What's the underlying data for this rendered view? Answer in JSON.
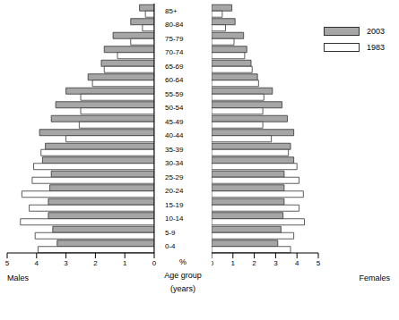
{
  "chart_data": [
    {
      "type": "bar",
      "orientation": "horizontal",
      "xlabel": "Males",
      "annotations": [
        "%",
        "Age group",
        "(years)"
      ],
      "categories": [
        "0-4",
        "5-9",
        "10-14",
        "15-19",
        "20-24",
        "25-29",
        "30-34",
        "35-39",
        "40-44",
        "45-49",
        "50-54",
        "55-59",
        "60-64",
        "65-69",
        "70-74",
        "75-79",
        "80-84",
        "85+"
      ],
      "xlim": [
        0,
        5
      ],
      "xticks": [
        0,
        1,
        2,
        3,
        4,
        5
      ],
      "tick_labels": true,
      "series": [
        {
          "name": "2003",
          "color": "#a6a6a6",
          "values": [
            3.3,
            3.45,
            3.6,
            3.6,
            3.55,
            3.5,
            3.8,
            3.7,
            3.9,
            3.5,
            3.35,
            3.0,
            2.25,
            1.8,
            1.7,
            1.4,
            0.8,
            0.5
          ]
        },
        {
          "name": "1983",
          "color": "#ffffff",
          "values": [
            3.95,
            4.05,
            4.55,
            4.25,
            4.5,
            4.15,
            4.1,
            3.85,
            3.0,
            2.55,
            2.5,
            2.5,
            2.1,
            1.7,
            1.25,
            0.8,
            0.4,
            0.3
          ]
        }
      ]
    },
    {
      "type": "bar",
      "orientation": "horizontal",
      "xlabel": "Females",
      "legend": "top-right",
      "categories": [
        "0-4",
        "5-9",
        "10-14",
        "15-19",
        "20-24",
        "25-29",
        "30-34",
        "35-39",
        "40-44",
        "45-49",
        "50-54",
        "55-59",
        "60-64",
        "65-69",
        "70-74",
        "75-79",
        "80-84",
        "85+"
      ],
      "xlim": [
        0,
        5
      ],
      "xticks": [
        0,
        1,
        2,
        3,
        4,
        5
      ],
      "tick_labels": "x",
      "series": [
        {
          "name": "2003",
          "color": "#a6a6a6",
          "values": [
            3.1,
            3.25,
            3.35,
            3.4,
            3.4,
            3.4,
            3.85,
            3.7,
            3.85,
            3.55,
            3.3,
            2.85,
            2.15,
            1.85,
            1.65,
            1.5,
            1.1,
            0.95
          ]
        },
        {
          "name": "1983",
          "color": "#ffffff",
          "values": [
            3.7,
            3.85,
            4.35,
            4.1,
            4.3,
            4.1,
            4.0,
            3.6,
            2.8,
            2.4,
            2.4,
            2.45,
            2.2,
            1.9,
            1.55,
            1.05,
            0.65,
            0.5
          ]
        }
      ]
    }
  ]
}
